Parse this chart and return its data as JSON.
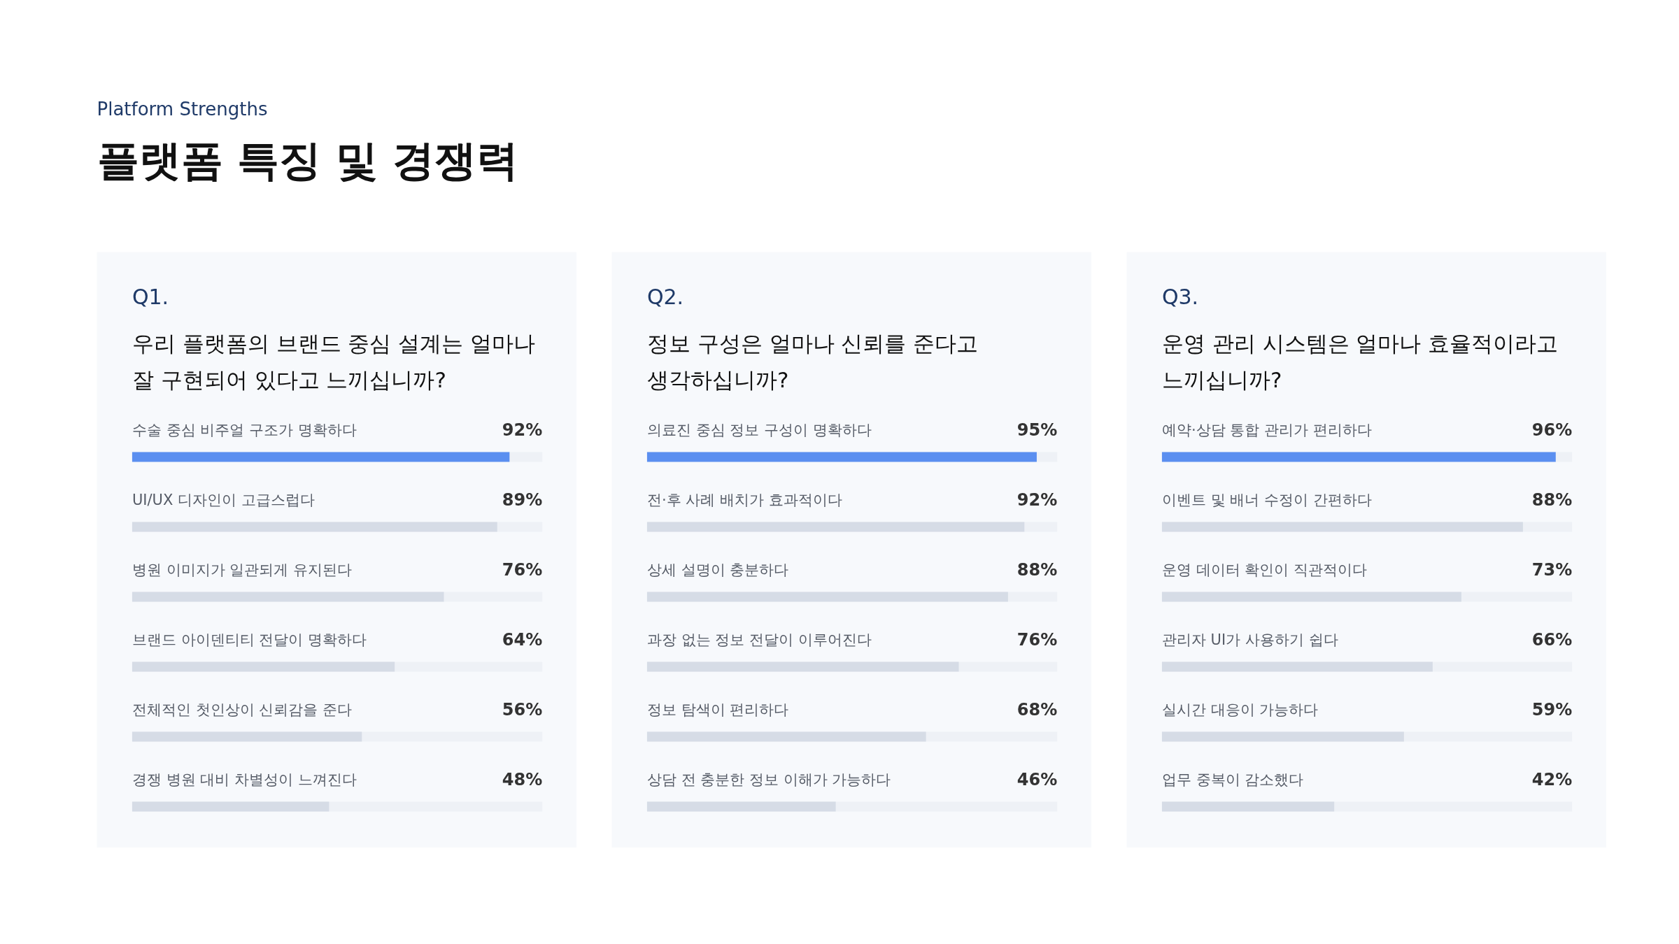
{
  "chart_data": [
    {
      "type": "bar",
      "orientation": "horizontal",
      "title": "Q1.",
      "subtitle": "우리 플랫폼의 브랜드 중심 설계는 얼마나\n잘 구현되어 있다고 느끼십니까?",
      "annotations": [
        "Platform Strengths",
        "플랫폼 특징 및 경쟁력"
      ],
      "categories": [
        "수술 중심 비주얼 구조가 명확하다",
        "UI/UX 디자인이 고급스럽다",
        "병원 이미지가 일관되게 유지된다",
        "브랜드 아이덴티티 전달이 명확하다",
        "전체적인 첫인상이 신뢰감을 준다",
        "경쟁 병원 대비 차별성이 느껴진다"
      ],
      "values": [
        92,
        89,
        76,
        64,
        56,
        48
      ],
      "value_labels": [
        "92%",
        "89%",
        "76%",
        "64%",
        "56%",
        "48%"
      ],
      "colors": [
        "#5b8ff0",
        "#d6dce6",
        "#d6dce6",
        "#d6dce6",
        "#d6dce6",
        "#d6dce6"
      ],
      "xlim": [
        0,
        100
      ],
      "tick_labels": false
    },
    {
      "type": "bar",
      "orientation": "horizontal",
      "title": "Q2.",
      "subtitle": "정보 구성은 얼마나 신뢰를 준다고\n생각하십니까?",
      "categories": [
        "의료진 중심 정보 구성이 명확하다",
        "전·후 사례 배치가 효과적이다",
        "상세 설명이 충분하다",
        "과장 없는 정보 전달이 이루어진다",
        "정보 탐색이 편리하다",
        "상담 전 충분한 정보 이해가 가능하다"
      ],
      "values": [
        95,
        92,
        88,
        76,
        68,
        46
      ],
      "value_labels": [
        "95%",
        "92%",
        "88%",
        "76%",
        "68%",
        "46%"
      ],
      "colors": [
        "#5b8ff0",
        "#d6dce6",
        "#d6dce6",
        "#d6dce6",
        "#d6dce6",
        "#d6dce6"
      ],
      "xlim": [
        0,
        100
      ],
      "tick_labels": false
    },
    {
      "type": "bar",
      "orientation": "horizontal",
      "title": "Q3.",
      "subtitle": "운영 관리 시스템은 얼마나 효율적이라고\n느끼십니까?",
      "categories": [
        "예약·상담 통합 관리가 편리하다",
        "이벤트 및 배너 수정이 간편하다",
        "운영 데이터 확인이 직관적이다",
        "관리자 UI가 사용하기 쉽다",
        "실시간 대응이 가능하다",
        "업무 중복이 감소했다"
      ],
      "values": [
        96,
        88,
        73,
        66,
        59,
        42
      ],
      "value_labels": [
        "96%",
        "88%",
        "73%",
        "66%",
        "59%",
        "42%"
      ],
      "colors": [
        "#5b8ff0",
        "#d6dce6",
        "#d6dce6",
        "#d6dce6",
        "#d6dce6",
        "#d6dce6"
      ],
      "xlim": [
        0,
        100
      ],
      "tick_labels": false
    }
  ]
}
